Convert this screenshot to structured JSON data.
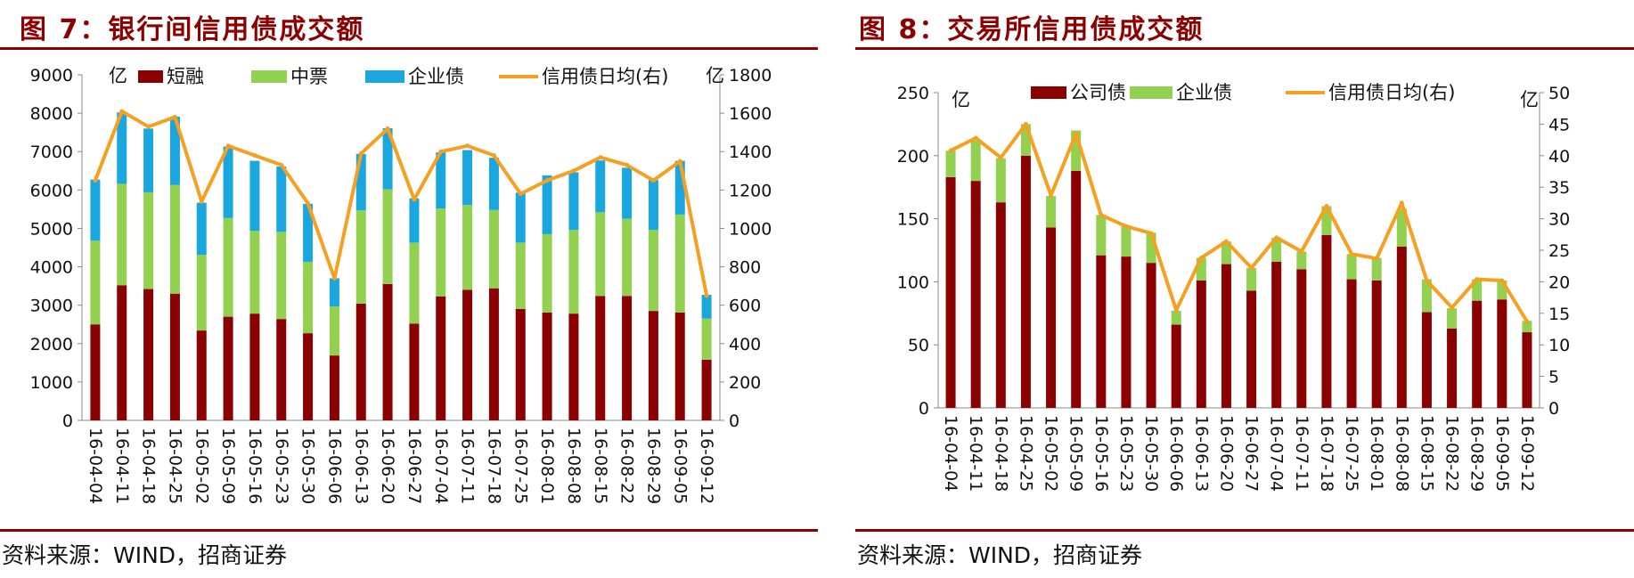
{
  "charts": [
    {
      "fig_label": "图 7：银行间信用债成交额",
      "source": "资料来源：WIND，招商证券",
      "unit_left": "亿",
      "unit_right": "亿",
      "colors": {
        "bar1": "#8b0000",
        "bar2": "#92d050",
        "bar3": "#1aa7e0",
        "line": "#f5a020"
      },
      "chart_data": {
        "type": "bar",
        "stacked": true,
        "categories": [
          "16-04-04",
          "16-04-11",
          "16-04-18",
          "16-04-25",
          "16-05-02",
          "16-05-09",
          "16-05-16",
          "16-05-23",
          "16-05-30",
          "16-06-06",
          "16-06-13",
          "16-06-20",
          "16-06-27",
          "16-07-04",
          "16-07-11",
          "16-07-18",
          "16-07-25",
          "16-08-01",
          "16-08-08",
          "16-08-15",
          "16-08-22",
          "16-08-29",
          "16-09-05",
          "16-09-12"
        ],
        "series": [
          {
            "name": "短融",
            "axis": "left",
            "values": [
              2500,
              3520,
              3420,
              3300,
              2340,
              2700,
              2780,
              2640,
              2270,
              1690,
              3040,
              3550,
              2520,
              3230,
              3400,
              3440,
              2900,
              2810,
              2780,
              3240,
              3240,
              2850,
              2810,
              1580
            ]
          },
          {
            "name": "中票",
            "axis": "left",
            "values": [
              2180,
              2640,
              2520,
              2830,
              1970,
              2570,
              2160,
              2270,
              1860,
              1280,
              2430,
              2470,
              2110,
              2290,
              2210,
              2040,
              1730,
              2040,
              2180,
              2180,
              2010,
              2110,
              2550,
              1070
            ]
          },
          {
            "name": "企业债",
            "axis": "left",
            "values": [
              1590,
              1860,
              1660,
              1780,
              1360,
              1860,
              1820,
              1700,
              1510,
              730,
              1470,
              1590,
              1150,
              1460,
              1430,
              1360,
              1300,
              1530,
              1500,
              1350,
              1330,
              1300,
              1400,
              620
            ]
          },
          {
            "name": "信用债日均(右)",
            "type": "line",
            "axis": "right",
            "values": [
              1250,
              1610,
              1530,
              1580,
              1140,
              1430,
              1380,
              1330,
              1130,
              740,
              1390,
              1520,
              1150,
              1400,
              1430,
              1380,
              1180,
              1250,
              1300,
              1370,
              1330,
              1250,
              1350,
              650
            ]
          }
        ],
        "ylim": [
          0,
          9000
        ],
        "y_ticks": [
          0,
          1000,
          2000,
          3000,
          4000,
          5000,
          6000,
          7000,
          8000,
          9000
        ],
        "y2lim": [
          0,
          1800
        ],
        "y2_ticks": [
          0,
          200,
          400,
          600,
          800,
          1000,
          1200,
          1400,
          1600,
          1800
        ],
        "legend": "top",
        "grid": false
      }
    },
    {
      "fig_label": "图 8：交易所信用债成交额",
      "source": "资料来源：WIND，招商证券",
      "unit_left": "亿",
      "unit_right": "亿",
      "colors": {
        "bar1": "#8b0000",
        "bar2": "#92d050",
        "line": "#f5a020"
      },
      "chart_data": {
        "type": "bar",
        "stacked": true,
        "categories": [
          "16-04-04",
          "16-04-11",
          "16-04-18",
          "16-04-25",
          "16-05-02",
          "16-05-09",
          "16-05-16",
          "16-05-23",
          "16-05-30",
          "16-06-06",
          "16-06-13",
          "16-06-20",
          "16-06-27",
          "16-07-04",
          "16-07-11",
          "16-07-18",
          "16-07-25",
          "16-08-01",
          "16-08-08",
          "16-08-15",
          "16-08-22",
          "16-08-29",
          "16-09-05",
          "16-09-12"
        ],
        "series": [
          {
            "name": "公司债",
            "axis": "left",
            "values": [
              183,
              180,
              163,
              200,
              143,
              188,
              121,
              120,
              115,
              66,
              101,
              114,
              93,
              116,
              110,
              137,
              102,
              101,
              128,
              76,
              63,
              85,
              86,
              60
            ]
          },
          {
            "name": "企业债",
            "axis": "left",
            "values": [
              21,
              32,
              35,
              25,
              25,
              32,
              32,
              24,
              24,
              11,
              18,
              18,
              18,
              19,
              14,
              23,
              20,
              18,
              30,
              26,
              16,
              17,
              15,
              9
            ]
          },
          {
            "name": "信用债日均(右)",
            "type": "line",
            "axis": "right",
            "values": [
              40.8,
              42.8,
              39.7,
              45.0,
              33.7,
              43.5,
              30.6,
              28.8,
              27.7,
              15.5,
              23.8,
              26.4,
              22.2,
              27.0,
              24.8,
              32.0,
              24.4,
              23.7,
              32.5,
              20.2,
              15.9,
              20.4,
              20.2,
              13.7
            ]
          }
        ],
        "ylim": [
          0,
          250
        ],
        "y_ticks": [
          0,
          50,
          100,
          150,
          200,
          250
        ],
        "y2lim": [
          0,
          50
        ],
        "y2_ticks": [
          0,
          5,
          10,
          15,
          20,
          25,
          30,
          35,
          40,
          45,
          50
        ],
        "legend": "top",
        "grid": false
      }
    }
  ]
}
